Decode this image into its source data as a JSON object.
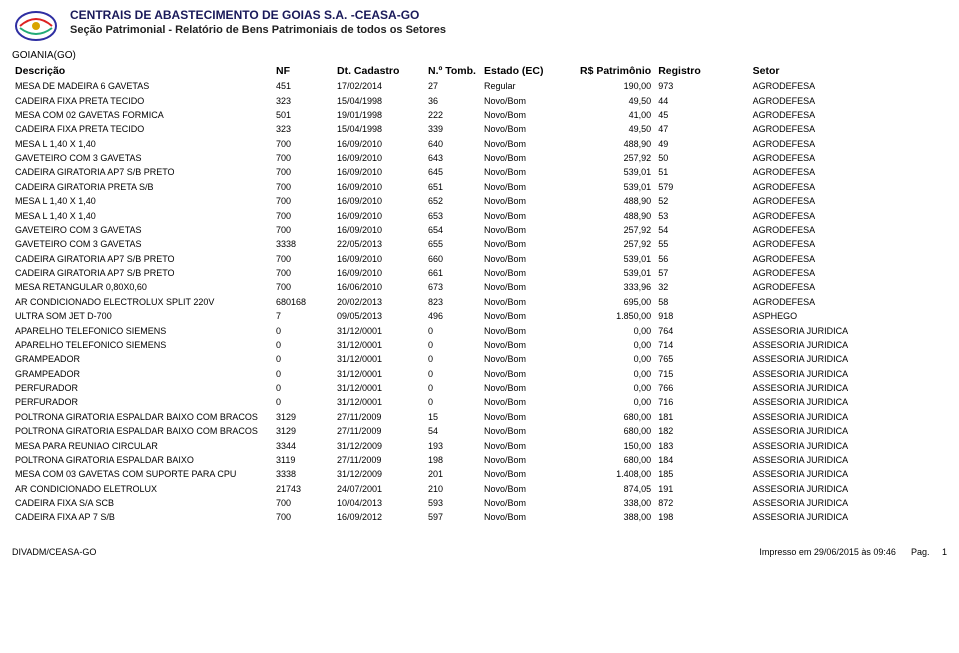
{
  "header": {
    "org": "CENTRAIS DE ABASTECIMENTO DE GOIAS S.A. -CEASA-GO",
    "report": "Seção Patrimonial - Relatório de Bens Patrimoniais de todos os Setores",
    "location": "GOIANIA(GO)"
  },
  "columns": {
    "desc": "Descrição",
    "nf": "NF",
    "cadastro": "Dt. Cadastro",
    "tomb": "N.º Tomb.",
    "estado": "Estado (EC)",
    "valor": "R$ Patrimônio",
    "registro": "Registro",
    "setor": "Setor"
  },
  "rows": [
    {
      "desc": "MESA DE MADEIRA 6 GAVETAS",
      "nf": "451",
      "cad": "17/02/2014",
      "tomb": "27",
      "est": "Regular",
      "val": "190,00",
      "reg": "973",
      "setor": "AGRODEFESA"
    },
    {
      "desc": "CADEIRA FIXA PRETA TECIDO",
      "nf": "323",
      "cad": "15/04/1998",
      "tomb": "36",
      "est": "Novo/Bom",
      "val": "49,50",
      "reg": "44",
      "setor": "AGRODEFESA"
    },
    {
      "desc": "MESA COM 02 GAVETAS FORMICA",
      "nf": "501",
      "cad": "19/01/1998",
      "tomb": "222",
      "est": "Novo/Bom",
      "val": "41,00",
      "reg": "45",
      "setor": "AGRODEFESA"
    },
    {
      "desc": "CADEIRA FIXA PRETA TECIDO",
      "nf": "323",
      "cad": "15/04/1998",
      "tomb": "339",
      "est": "Novo/Bom",
      "val": "49,50",
      "reg": "47",
      "setor": "AGRODEFESA"
    },
    {
      "desc": "MESA L 1,40 X 1,40",
      "nf": "700",
      "cad": "16/09/2010",
      "tomb": "640",
      "est": "Novo/Bom",
      "val": "488,90",
      "reg": "49",
      "setor": "AGRODEFESA"
    },
    {
      "desc": "GAVETEIRO COM 3 GAVETAS",
      "nf": "700",
      "cad": "16/09/2010",
      "tomb": "643",
      "est": "Novo/Bom",
      "val": "257,92",
      "reg": "50",
      "setor": "AGRODEFESA"
    },
    {
      "desc": "CADEIRA GIRATORIA AP7 S/B PRETO",
      "nf": "700",
      "cad": "16/09/2010",
      "tomb": "645",
      "est": "Novo/Bom",
      "val": "539,01",
      "reg": "51",
      "setor": "AGRODEFESA"
    },
    {
      "desc": "CADEIRA GIRATORIA PRETA S/B",
      "nf": "700",
      "cad": "16/09/2010",
      "tomb": "651",
      "est": "Novo/Bom",
      "val": "539,01",
      "reg": "579",
      "setor": "AGRODEFESA"
    },
    {
      "desc": "MESA L 1,40 X 1,40",
      "nf": "700",
      "cad": "16/09/2010",
      "tomb": "652",
      "est": "Novo/Bom",
      "val": "488,90",
      "reg": "52",
      "setor": "AGRODEFESA"
    },
    {
      "desc": "MESA L 1,40 X 1,40",
      "nf": "700",
      "cad": "16/09/2010",
      "tomb": "653",
      "est": "Novo/Bom",
      "val": "488,90",
      "reg": "53",
      "setor": "AGRODEFESA"
    },
    {
      "desc": "GAVETEIRO COM 3 GAVETAS",
      "nf": "700",
      "cad": "16/09/2010",
      "tomb": "654",
      "est": "Novo/Bom",
      "val": "257,92",
      "reg": "54",
      "setor": "AGRODEFESA"
    },
    {
      "desc": "GAVETEIRO COM 3 GAVETAS",
      "nf": "3338",
      "cad": "22/05/2013",
      "tomb": "655",
      "est": "Novo/Bom",
      "val": "257,92",
      "reg": "55",
      "setor": "AGRODEFESA"
    },
    {
      "desc": "CADEIRA GIRATORIA AP7 S/B PRETO",
      "nf": "700",
      "cad": "16/09/2010",
      "tomb": "660",
      "est": "Novo/Bom",
      "val": "539,01",
      "reg": "56",
      "setor": "AGRODEFESA"
    },
    {
      "desc": "CADEIRA GIRATORIA AP7 S/B PRETO",
      "nf": "700",
      "cad": "16/09/2010",
      "tomb": "661",
      "est": "Novo/Bom",
      "val": "539,01",
      "reg": "57",
      "setor": "AGRODEFESA"
    },
    {
      "desc": "MESA RETANGULAR 0,80X0,60",
      "nf": "700",
      "cad": "16/06/2010",
      "tomb": "673",
      "est": "Novo/Bom",
      "val": "333,96",
      "reg": "32",
      "setor": "AGRODEFESA"
    },
    {
      "desc": "AR CONDICIONADO ELECTROLUX SPLIT 220V",
      "nf": "680168",
      "cad": "20/02/2013",
      "tomb": "823",
      "est": "Novo/Bom",
      "val": "695,00",
      "reg": "58",
      "setor": "AGRODEFESA"
    },
    {
      "desc": "ULTRA SOM JET D-700",
      "nf": "7",
      "cad": "09/05/2013",
      "tomb": "496",
      "est": "Novo/Bom",
      "val": "1.850,00",
      "reg": "918",
      "setor": "ASPHEGO"
    },
    {
      "desc": "APARELHO TELEFONICO SIEMENS",
      "nf": "0",
      "cad": "31/12/0001",
      "tomb": "0",
      "est": "Novo/Bom",
      "val": "0,00",
      "reg": "764",
      "setor": "ASSESORIA JURIDICA"
    },
    {
      "desc": "APARELHO TELEFONICO SIEMENS",
      "nf": "0",
      "cad": "31/12/0001",
      "tomb": "0",
      "est": "Novo/Bom",
      "val": "0,00",
      "reg": "714",
      "setor": "ASSESORIA JURIDICA"
    },
    {
      "desc": "GRAMPEADOR",
      "nf": "0",
      "cad": "31/12/0001",
      "tomb": "0",
      "est": "Novo/Bom",
      "val": "0,00",
      "reg": "765",
      "setor": "ASSESORIA JURIDICA"
    },
    {
      "desc": "GRAMPEADOR",
      "nf": "0",
      "cad": "31/12/0001",
      "tomb": "0",
      "est": "Novo/Bom",
      "val": "0,00",
      "reg": "715",
      "setor": "ASSESORIA JURIDICA"
    },
    {
      "desc": "PERFURADOR",
      "nf": "0",
      "cad": "31/12/0001",
      "tomb": "0",
      "est": "Novo/Bom",
      "val": "0,00",
      "reg": "766",
      "setor": "ASSESORIA JURIDICA"
    },
    {
      "desc": "PERFURADOR",
      "nf": "0",
      "cad": "31/12/0001",
      "tomb": "0",
      "est": "Novo/Bom",
      "val": "0,00",
      "reg": "716",
      "setor": "ASSESORIA JURIDICA"
    },
    {
      "desc": "POLTRONA GIRATORIA ESPALDAR BAIXO COM BRACOS",
      "nf": "3129",
      "cad": "27/11/2009",
      "tomb": "15",
      "est": "Novo/Bom",
      "val": "680,00",
      "reg": "181",
      "setor": "ASSESORIA JURIDICA"
    },
    {
      "desc": "POLTRONA GIRATORIA ESPALDAR BAIXO COM BRACOS",
      "nf": "3129",
      "cad": "27/11/2009",
      "tomb": "54",
      "est": "Novo/Bom",
      "val": "680,00",
      "reg": "182",
      "setor": "ASSESORIA JURIDICA"
    },
    {
      "desc": "MESA PARA REUNIAO CIRCULAR",
      "nf": "3344",
      "cad": "31/12/2009",
      "tomb": "193",
      "est": "Novo/Bom",
      "val": "150,00",
      "reg": "183",
      "setor": "ASSESORIA JURIDICA"
    },
    {
      "desc": "POLTRONA GIRATORIA ESPALDAR BAIXO",
      "nf": "3119",
      "cad": "27/11/2009",
      "tomb": "198",
      "est": "Novo/Bom",
      "val": "680,00",
      "reg": "184",
      "setor": "ASSESORIA JURIDICA"
    },
    {
      "desc": "MESA COM 03 GAVETAS COM SUPORTE PARA CPU",
      "nf": "3338",
      "cad": "31/12/2009",
      "tomb": "201",
      "est": "Novo/Bom",
      "val": "1.408,00",
      "reg": "185",
      "setor": "ASSESORIA JURIDICA"
    },
    {
      "desc": "AR CONDICIONADO ELETROLUX",
      "nf": "21743",
      "cad": "24/07/2001",
      "tomb": "210",
      "est": "Novo/Bom",
      "val": "874,05",
      "reg": "191",
      "setor": "ASSESORIA JURIDICA"
    },
    {
      "desc": "CADEIRA FIXA S/A SCB",
      "nf": "700",
      "cad": "10/04/2013",
      "tomb": "593",
      "est": "Novo/Bom",
      "val": "338,00",
      "reg": "872",
      "setor": "ASSESORIA JURIDICA"
    },
    {
      "desc": "CADEIRA FIXA AP 7 S/B",
      "nf": "700",
      "cad": "16/09/2012",
      "tomb": "597",
      "est": "Novo/Bom",
      "val": "388,00",
      "reg": "198",
      "setor": "ASSESORIA JURIDICA"
    }
  ],
  "footer": {
    "left": "DIVADM/CEASA-GO",
    "printed": "Impresso em 29/06/2015 às 09:46",
    "page_label": "Pag.",
    "page_num": "1"
  },
  "style": {
    "bg": "#ffffff",
    "text": "#000000",
    "title_color": "#1a1a5a",
    "font_main_pt": 9,
    "font_title_pt": 12,
    "font_subtitle_pt": 11,
    "font_header_pt": 10.5
  }
}
